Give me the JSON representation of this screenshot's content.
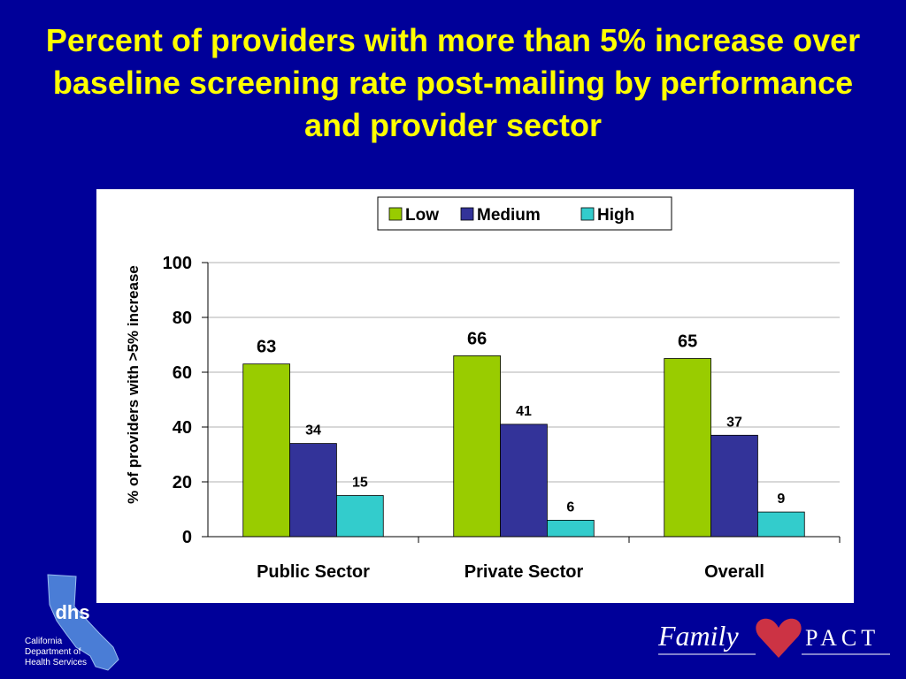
{
  "slide": {
    "title": "Percent of providers with more than 5% increase over baseline screening rate post-mailing by performance and provider sector"
  },
  "colors": {
    "background": "#000099",
    "title_text": "#ffff00",
    "series_low": "#99cc00",
    "series_medium": "#333399",
    "series_high": "#33cccc"
  },
  "chart_data": {
    "type": "bar",
    "title": "",
    "xlabel": "",
    "ylabel": "% of providers with >5% increase",
    "categories": [
      "Public Sector",
      "Private Sector",
      "Overall"
    ],
    "series": [
      {
        "name": "Low",
        "values": [
          63,
          66,
          65
        ],
        "color": "#99cc00"
      },
      {
        "name": "Medium",
        "values": [
          34,
          41,
          37
        ],
        "color": "#333399"
      },
      {
        "name": "High",
        "values": [
          15,
          6,
          9
        ],
        "color": "#33cccc"
      }
    ],
    "ylim": [
      0,
      100
    ],
    "yticks": [
      0,
      20,
      40,
      60,
      80,
      100
    ],
    "grid": true,
    "legend": "top-center",
    "data_labels": true
  },
  "logos": {
    "dhs": {
      "mark": "dhs",
      "lines": [
        "California",
        "Department of",
        "Health Services"
      ]
    },
    "family_pact": {
      "word": "Family",
      "suffix": "PACT",
      "icon": "heart-icon"
    }
  }
}
